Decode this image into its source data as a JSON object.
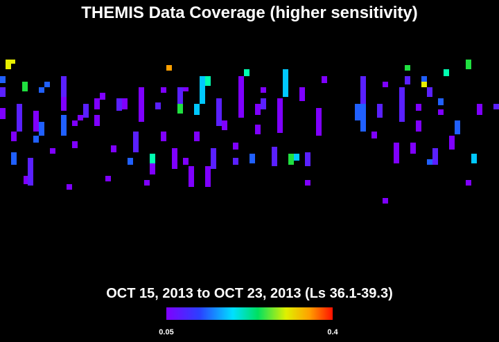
{
  "title": "THEMIS Data Coverage (higher sensitivity)",
  "subtitle": "OCT 15, 2013 to OCT 23, 2013 (Ls 36.1-39.3)",
  "colorbar": {
    "min": 0.05,
    "max": 0.4,
    "ticks": [
      0.05,
      0.4
    ]
  }
}
